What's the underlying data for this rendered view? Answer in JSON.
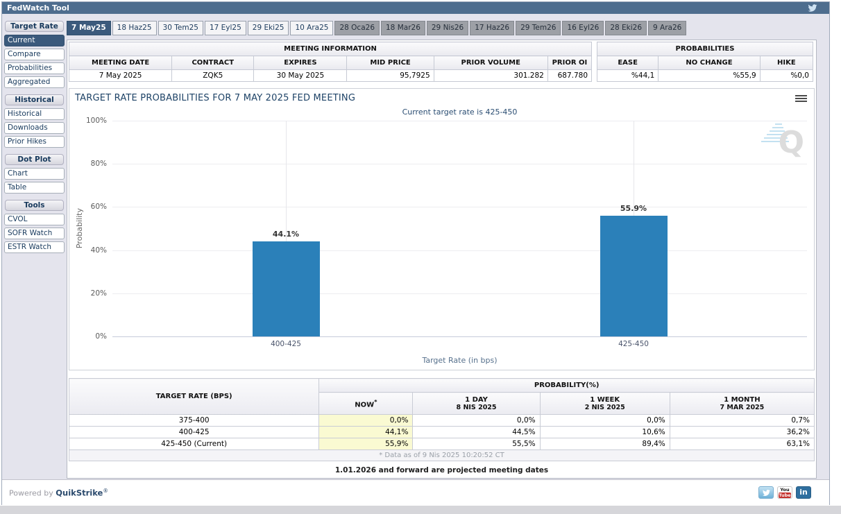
{
  "titlebar": {
    "title": "FedWatch Tool"
  },
  "sidebar": {
    "sections": [
      {
        "header": "Target Rate",
        "items": [
          {
            "label": "Current",
            "selected": true
          },
          {
            "label": "Compare"
          },
          {
            "label": "Probabilities"
          },
          {
            "label": "Aggregated"
          }
        ]
      },
      {
        "header": "Historical",
        "items": [
          {
            "label": "Historical"
          },
          {
            "label": "Downloads"
          },
          {
            "label": "Prior Hikes"
          }
        ]
      },
      {
        "header": "Dot Plot",
        "items": [
          {
            "label": "Chart"
          },
          {
            "label": "Table"
          }
        ]
      },
      {
        "header": "Tools",
        "items": [
          {
            "label": "CVOL"
          },
          {
            "label": "SOFR Watch"
          },
          {
            "label": "ESTR Watch"
          }
        ]
      }
    ]
  },
  "tabs": [
    {
      "label": "7 May25",
      "state": "selected"
    },
    {
      "label": "18 Haz25",
      "state": "light"
    },
    {
      "label": "30 Tem25",
      "state": "light"
    },
    {
      "label": "17 Eyl25",
      "state": "light"
    },
    {
      "label": "29 Eki25",
      "state": "light"
    },
    {
      "label": "10 Ara25",
      "state": "light"
    },
    {
      "label": "28 Oca26",
      "state": "gray"
    },
    {
      "label": "18 Mar26",
      "state": "gray"
    },
    {
      "label": "29 Nis26",
      "state": "gray"
    },
    {
      "label": "17 Haz26",
      "state": "gray"
    },
    {
      "label": "29 Tem26",
      "state": "gray"
    },
    {
      "label": "16 Eyl26",
      "state": "gray"
    },
    {
      "label": "28 Eki26",
      "state": "gray"
    },
    {
      "label": "9 Ara26",
      "state": "gray"
    }
  ],
  "meeting_info": {
    "title": "MEETING INFORMATION",
    "columns": [
      "MEETING DATE",
      "CONTRACT",
      "EXPIRES",
      "MID PRICE",
      "PRIOR VOLUME",
      "PRIOR OI"
    ],
    "values": [
      "7 May 2025",
      "ZQK5",
      "30 May 2025",
      "95,7925",
      "301.282",
      "687.780"
    ]
  },
  "probabilities_summary": {
    "title": "PROBABILITIES",
    "columns": [
      "EASE",
      "NO CHANGE",
      "HIKE"
    ],
    "values": [
      "%44,1",
      "%55,9",
      "%0,0"
    ]
  },
  "chart_data": {
    "type": "bar",
    "title": "TARGET RATE PROBABILITIES FOR 7 MAY 2025 FED MEETING",
    "subtitle": "Current target rate is 425-450",
    "categories": [
      "400-425",
      "425-450"
    ],
    "values": [
      44.1,
      55.9
    ],
    "value_labels": [
      "44.1%",
      "55.9%"
    ],
    "xlabel": "Target Rate (in bps)",
    "ylabel": "Probability",
    "ylim": [
      0,
      100
    ],
    "yticks": [
      0,
      20,
      40,
      60,
      80,
      100
    ],
    "ytick_labels": [
      "0%",
      "20%",
      "40%",
      "60%",
      "80%",
      "100%"
    ],
    "bar_color": "#2b80b9",
    "grid": true,
    "legend_position": "none",
    "watermark_letter": "Q"
  },
  "probability_table": {
    "rate_header": "TARGET RATE (BPS)",
    "group_header": "PROBABILITY(%)",
    "columns": [
      {
        "label": "NOW",
        "sup": "*",
        "sub": ""
      },
      {
        "label": "1 DAY",
        "sup": "",
        "sub": "8 NIS 2025"
      },
      {
        "label": "1 WEEK",
        "sup": "",
        "sub": "2 NIS 2025"
      },
      {
        "label": "1 MONTH",
        "sup": "",
        "sub": "7 MAR 2025"
      }
    ],
    "rows": [
      [
        "375-400",
        "0,0%",
        "0,0%",
        "0,0%",
        "0,7%"
      ],
      [
        "400-425",
        "44,1%",
        "44,5%",
        "10,6%",
        "36,2%"
      ],
      [
        "425-450 (Current)",
        "55,9%",
        "55,5%",
        "89,4%",
        "63,1%"
      ]
    ],
    "footnote": "* Data as of 9 Nis 2025 10:20:52 CT"
  },
  "notes": {
    "projected": "1.01.2026 and forward are projected meeting dates"
  },
  "footer": {
    "powered_by": "Powered by",
    "brand": "QuikStrike",
    "reg": "®",
    "social": {
      "youtube_top": "You",
      "youtube_bottom": "Tube",
      "linkedin": "in"
    }
  },
  "colors": {
    "titlebar": "#4e6d8e",
    "selected_navy": "#3b5a7c",
    "bar_blue": "#2b80b9",
    "highlight_yellow": "#fafad2",
    "tab_gray": "#9da0a6",
    "page_bg": "#e4e4ed"
  }
}
